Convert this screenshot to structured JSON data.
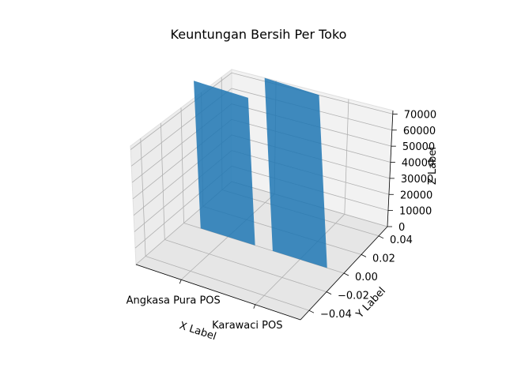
{
  "chart_data": {
    "type": "bar",
    "projection": "3d",
    "title": "Keuntungan Bersih Per Toko",
    "xlabel": "X Label",
    "ylabel": "Y Label",
    "zlabel": "Z Label",
    "categories": [
      "Angkasa Pura POS",
      "Karawaci POS"
    ],
    "values": [
      58000,
      68000
    ],
    "y_ticks": [
      "0.04",
      "0.02",
      "0.00",
      "−0.02",
      "−0.04"
    ],
    "z_ticks": [
      "0",
      "10000",
      "20000",
      "30000",
      "40000",
      "50000",
      "60000",
      "70000"
    ],
    "zlim": [
      0,
      70000
    ],
    "grid": true,
    "bar_color": "#1f77b4"
  }
}
